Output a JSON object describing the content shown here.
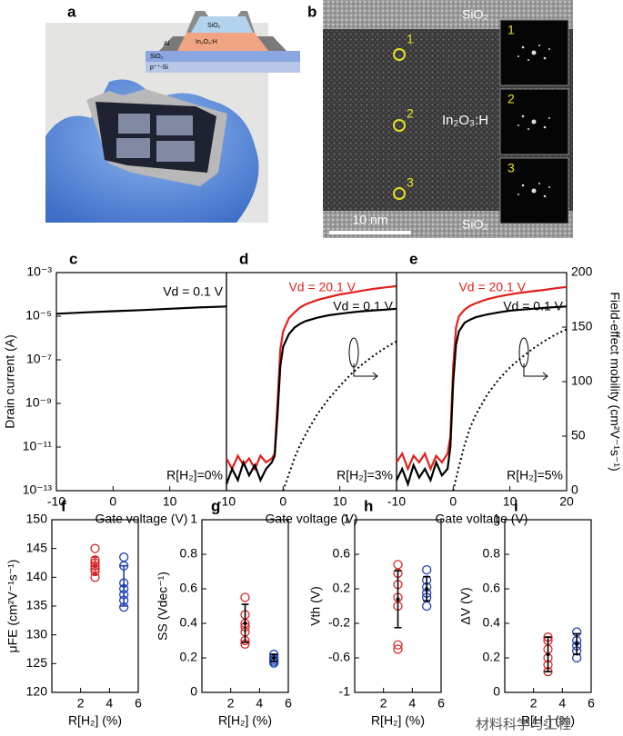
{
  "image_panels": [
    {
      "label": "a",
      "layer_labels": [
        "SiO₂",
        "Al",
        "In₂O₃:H",
        "SiO₂",
        "p⁺⁺-Si"
      ]
    },
    {
      "label": "b",
      "top_layer": "SiO₂",
      "film": "In₂O₃:H",
      "bottom_layer": "SiO₂",
      "points": [
        "1",
        "2",
        "3"
      ],
      "insets": [
        "1",
        "2",
        "3"
      ],
      "scale_bar": "10 nm"
    }
  ],
  "watermark": "材料科学与工程",
  "chart_data": [
    {
      "type": "line",
      "panel": "c",
      "log_y": true,
      "xlabel": "Gate voltage (V)",
      "ylabel": "Drain current (A)",
      "xlim": [
        -10,
        20
      ],
      "xticks": [
        -10,
        0,
        10
      ],
      "ylim": [
        1e-13,
        0.001
      ],
      "yticks": [
        {
          "value": 0.001,
          "label": "10⁻³"
        },
        {
          "value": 1e-05,
          "label": "10⁻⁵"
        },
        {
          "value": 1e-07,
          "label": "10⁻⁷"
        },
        {
          "value": 1e-09,
          "label": "10⁻⁹"
        },
        {
          "value": 1e-11,
          "label": "10⁻¹¹"
        },
        {
          "value": 1e-13,
          "label": "10⁻¹³"
        }
      ],
      "annotation": "R[H₂]=0%",
      "series": [
        {
          "name": "Vd = 0.1 V",
          "color": "#000000",
          "x": [
            -10,
            -5,
            0,
            5,
            10,
            15,
            20
          ],
          "values": [
            1.3e-05,
            1.5e-05,
            1.7e-05,
            1.9e-05,
            2.2e-05,
            2.5e-05,
            2.8e-05
          ]
        }
      ]
    },
    {
      "type": "line",
      "panel": "d",
      "log_y": true,
      "xlabel": "Gate voltage (V)",
      "xlim": [
        -10,
        20
      ],
      "xticks": [
        -10,
        0,
        10
      ],
      "ylim": [
        1e-13,
        0.001
      ],
      "y2lim": [
        0,
        200
      ],
      "annotation": "R[H₂]=3%",
      "series": [
        {
          "name": "Vd = 20.1 V",
          "color": "#e0201b",
          "x": [
            -10,
            -9,
            -8,
            -7,
            -6,
            -5,
            -4,
            -3,
            -2,
            -1.5,
            -1,
            -0.5,
            0,
            1,
            2,
            3,
            4,
            6,
            8,
            10,
            12,
            14,
            16,
            18,
            20
          ],
          "values": [
            3e-12,
            1e-12,
            4e-12,
            1.5e-12,
            3e-12,
            1e-12,
            4e-12,
            2e-12,
            3e-12,
            5e-12,
            1e-09,
            3e-07,
            2e-06,
            8e-06,
            1.5e-05,
            2.5e-05,
            3.5e-05,
            5.5e-05,
            7.5e-05,
            0.0001,
            0.00012,
            0.00015,
            0.00018,
            0.00021,
            0.00024
          ]
        },
        {
          "name": "Vd = 0.1 V",
          "color": "#000000",
          "x": [
            -10,
            -9,
            -8,
            -7,
            -6,
            -5,
            -4,
            -3,
            -2,
            -1.5,
            -1,
            -0.5,
            0,
            1,
            2,
            3,
            4,
            6,
            8,
            10,
            12,
            14,
            16,
            18,
            20
          ],
          "values": [
            2e-13,
            1e-12,
            3e-13,
            2e-12,
            5e-13,
            1.5e-12,
            3e-13,
            1e-12,
            2e-12,
            4e-12,
            3e-10,
            5e-08,
            4e-07,
            1.5e-06,
            3e-06,
            4.5e-06,
            6e-06,
            8.5e-06,
            1.1e-05,
            1.3e-05,
            1.5e-05,
            1.7e-05,
            1.85e-05,
            2e-05,
            2.2e-05
          ]
        },
        {
          "color": "#000000",
          "axis": "y2",
          "linestyle": "dotted",
          "x": [
            0,
            1,
            2,
            3,
            4,
            6,
            8,
            10,
            12,
            14,
            16,
            18,
            20
          ],
          "values": [
            0,
            15,
            30,
            42,
            52,
            70,
            84,
            96,
            107,
            116,
            124,
            131,
            137
          ]
        }
      ]
    },
    {
      "type": "line",
      "panel": "e",
      "log_y": true,
      "xlabel": "Gate voltage (V)",
      "y2label": "Field-effect mobility (cm²V⁻¹s⁻¹)",
      "xlim": [
        -10,
        20
      ],
      "xticks": [
        -10,
        0,
        10,
        20
      ],
      "ylim": [
        1e-13,
        0.001
      ],
      "y2lim": [
        0,
        200
      ],
      "y2ticks": [
        0,
        50,
        100,
        150,
        200
      ],
      "annotation": "R[H₂]=5%",
      "series": [
        {
          "name": "Vd = 20.1 V",
          "color": "#e0201b",
          "x": [
            -10,
            -9,
            -8,
            -7,
            -6,
            -5,
            -4,
            -3,
            -2,
            -1,
            -0.5,
            0,
            0.5,
            1,
            2,
            3,
            4,
            6,
            8,
            10,
            12,
            14,
            16,
            18,
            20
          ],
          "values": [
            2e-12,
            5e-12,
            1e-12,
            4e-12,
            2e-12,
            5e-12,
            1e-12,
            4e-12,
            2e-12,
            5e-12,
            3e-11,
            5e-08,
            3e-06,
            1e-05,
            2e-05,
            3e-05,
            4e-05,
            6e-05,
            8e-05,
            0.0001,
            0.00012,
            0.00014,
            0.00016,
            0.00019,
            0.00022
          ]
        },
        {
          "name": "Vd = 0.1 V",
          "color": "#000000",
          "x": [
            -10,
            -9,
            -8,
            -7,
            -6,
            -5,
            -4,
            -3,
            -2,
            -1,
            -0.5,
            0,
            0.5,
            1,
            2,
            3,
            4,
            6,
            8,
            10,
            12,
            14,
            16,
            18,
            20
          ],
          "values": [
            3e-13,
            1e-12,
            2e-13,
            1.5e-12,
            4e-13,
            1e-12,
            3e-13,
            2e-12,
            5e-13,
            1e-12,
            1e-11,
            1e-08,
            5e-07,
            2e-06,
            5e-06,
            7e-06,
            9e-06,
            1.2e-05,
            1.5e-05,
            1.8e-05,
            2e-05,
            2.2e-05,
            2.4e-05,
            2.6e-05,
            2.8e-05
          ]
        },
        {
          "color": "#000000",
          "axis": "y2",
          "linestyle": "dotted",
          "x": [
            0,
            1,
            2,
            3,
            4,
            6,
            8,
            10,
            12,
            14,
            16,
            18,
            20
          ],
          "values": [
            0,
            22,
            42,
            58,
            70,
            88,
            102,
            113,
            122,
            130,
            137,
            143,
            148
          ]
        }
      ]
    },
    {
      "type": "scatter",
      "panel": "f",
      "xlabel": "R[H₂] (%)",
      "ylabel": "μFE (cm²V⁻¹s⁻¹)",
      "xlim": [
        0,
        6
      ],
      "xticks": [
        2,
        4,
        6
      ],
      "ylim": [
        120,
        150
      ],
      "yticks": [
        120,
        125,
        130,
        135,
        140,
        145,
        150
      ],
      "series": [
        {
          "color": "#d62728",
          "x": [
            3,
            3,
            3,
            3,
            3,
            3,
            3
          ],
          "values": [
            141,
            142,
            141.5,
            143,
            145,
            140,
            142.5
          ]
        },
        {
          "color": "#1f3fb5",
          "x": [
            5,
            5,
            5,
            5,
            5,
            5,
            5
          ],
          "values": [
            143.5,
            142,
            139,
            138,
            137,
            136,
            134.8
          ]
        }
      ],
      "error_bars": [
        {
          "color": "#d62728",
          "x": 3,
          "value": 142,
          "error": 1.5
        },
        {
          "color": "#1f3fb5",
          "x": 5,
          "value": 138.5,
          "error": 3.5
        }
      ]
    },
    {
      "type": "scatter",
      "panel": "g",
      "xlabel": "R[H₂] (%)",
      "ylabel": "SS (Vdec⁻¹)",
      "xlim": [
        0,
        6
      ],
      "xticks": [
        2,
        4,
        6
      ],
      "ylim": [
        0,
        1
      ],
      "yticks": [
        0,
        0.2,
        0.4,
        0.6,
        0.8,
        1
      ],
      "series": [
        {
          "color": "#d62728",
          "x": [
            3,
            3,
            3,
            3,
            3,
            3,
            3
          ],
          "values": [
            0.55,
            0.45,
            0.4,
            0.38,
            0.35,
            0.3,
            0.28
          ]
        },
        {
          "color": "#1f3fb5",
          "x": [
            5,
            5,
            5,
            5,
            5
          ],
          "values": [
            0.22,
            0.2,
            0.19,
            0.18,
            0.17
          ]
        }
      ],
      "error_bars": [
        {
          "color": "#000000",
          "x": 3,
          "value": 0.4,
          "error": 0.11
        },
        {
          "color": "#000000",
          "x": 5,
          "value": 0.2,
          "error": 0.02
        }
      ]
    },
    {
      "type": "scatter",
      "panel": "h",
      "xlabel": "R[H₂] (%)",
      "ylabel": "Vth (V)",
      "xlim": [
        0,
        6
      ],
      "xticks": [
        2,
        4,
        6
      ],
      "ylim": [
        -1,
        1
      ],
      "yticks": [
        -1,
        -0.6,
        -0.2,
        0.2,
        0.6,
        1
      ],
      "series": [
        {
          "color": "#d62728",
          "x": [
            3,
            3,
            3,
            3,
            3,
            3,
            3
          ],
          "values": [
            0.48,
            0.38,
            0.25,
            0.1,
            0,
            -0.45,
            -0.5
          ]
        },
        {
          "color": "#1f3fb5",
          "x": [
            5,
            5,
            5,
            5,
            5,
            5
          ],
          "values": [
            0.42,
            0.3,
            0.22,
            0.15,
            0.1,
            0
          ]
        }
      ],
      "error_bars": [
        {
          "color": "#000000",
          "x": 3,
          "value": 0.08,
          "error": 0.33
        },
        {
          "color": "#000000",
          "x": 5,
          "value": 0.2,
          "error": 0.14
        }
      ]
    },
    {
      "type": "scatter",
      "panel": "i",
      "xlabel": "R[H₂] (%)",
      "ylabel": "ΔV (V)",
      "xlim": [
        0,
        6
      ],
      "xticks": [
        2,
        4,
        6
      ],
      "ylim": [
        0,
        1
      ],
      "yticks": [
        0,
        0.2,
        0.4,
        0.6,
        0.8,
        1
      ],
      "series": [
        {
          "color": "#d62728",
          "x": [
            3,
            3,
            3,
            3,
            3,
            3
          ],
          "values": [
            0.32,
            0.3,
            0.25,
            0.2,
            0.16,
            0.12
          ]
        },
        {
          "color": "#1f3fb5",
          "x": [
            5,
            5,
            5,
            5,
            5
          ],
          "values": [
            0.35,
            0.3,
            0.27,
            0.24,
            0.2
          ]
        }
      ],
      "error_bars": [
        {
          "color": "#000000",
          "x": 3,
          "value": 0.22,
          "error": 0.1
        },
        {
          "color": "#000000",
          "x": 5,
          "value": 0.28,
          "error": 0.06
        }
      ]
    }
  ]
}
